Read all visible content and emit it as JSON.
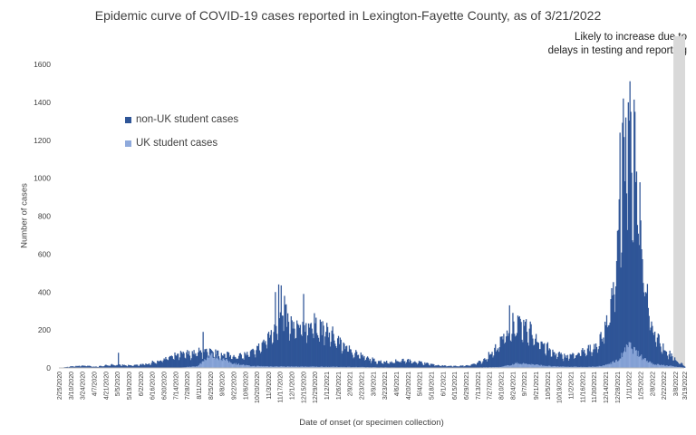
{
  "chart_data": {
    "type": "bar",
    "stacked": true,
    "title": "Epidemic curve of COVID-19 cases reported in Lexington-Fayette County, as of 3/21/2022",
    "xlabel": "Date of onset (or specimen collection)",
    "ylabel": "Number of cases",
    "ylim": [
      0,
      1600
    ],
    "yticks": [
      0,
      200,
      400,
      600,
      800,
      1000,
      1200,
      1400,
      1600
    ],
    "grid": false,
    "legend_position": "top-left",
    "annotation": "Likely to increase due to delays in testing and reporting",
    "x_start": "2020-02-25",
    "x_end": "2022-03-19",
    "x_tick_labels": [
      "2/25/2020",
      "3/10/2020",
      "3/24/2020",
      "4/7/2020",
      "4/21/2020",
      "5/5/2020",
      "5/19/2020",
      "6/2/2020",
      "6/16/2020",
      "6/30/2020",
      "7/14/2020",
      "7/28/2020",
      "8/11/2020",
      "8/25/2020",
      "9/8/2020",
      "9/22/2020",
      "10/6/2020",
      "10/20/2020",
      "11/3/2020",
      "11/17/2020",
      "12/1/2020",
      "12/15/2020",
      "12/29/2020",
      "1/12/2021",
      "1/26/2021",
      "2/9/2021",
      "2/23/2021",
      "3/9/2021",
      "3/23/2021",
      "4/6/2021",
      "4/20/2021",
      "5/4/2021",
      "5/18/2021",
      "6/1/2021",
      "6/15/2021",
      "6/29/2021",
      "7/13/2021",
      "7/27/2021",
      "8/10/2021",
      "8/24/2021",
      "9/7/2021",
      "9/21/2021",
      "10/5/2021",
      "10/19/2021",
      "11/2/2021",
      "11/16/2021",
      "11/30/2021",
      "12/14/2021",
      "12/28/2021",
      "1/11/2022",
      "1/25/2022",
      "2/8/2022",
      "2/22/2022",
      "3/8/2022",
      "3/19/2022"
    ],
    "series": [
      {
        "name": "non-UK student cases",
        "color": "#2f5597",
        "points": [
          [
            "2020-02-25",
            0
          ],
          [
            "2020-03-12",
            8
          ],
          [
            "2020-03-25",
            12
          ],
          [
            "2020-04-10",
            6
          ],
          [
            "2020-04-28",
            18
          ],
          [
            "2020-05-20",
            12
          ],
          [
            "2020-06-08",
            20
          ],
          [
            "2020-06-22",
            35
          ],
          [
            "2020-07-06",
            55
          ],
          [
            "2020-07-20",
            70
          ],
          [
            "2020-08-03",
            75
          ],
          [
            "2020-08-17",
            85
          ],
          [
            "2020-08-31",
            75
          ],
          [
            "2020-09-14",
            70
          ],
          [
            "2020-09-28",
            60
          ],
          [
            "2020-10-12",
            75
          ],
          [
            "2020-10-26",
            120
          ],
          [
            "2020-11-09",
            200
          ],
          [
            "2020-11-20",
            270
          ],
          [
            "2020-11-30",
            220
          ],
          [
            "2020-12-07",
            200
          ],
          [
            "2020-12-21",
            230
          ],
          [
            "2021-01-04",
            210
          ],
          [
            "2021-01-18",
            170
          ],
          [
            "2021-02-01",
            120
          ],
          [
            "2021-02-15",
            80
          ],
          [
            "2021-03-01",
            50
          ],
          [
            "2021-03-15",
            35
          ],
          [
            "2021-03-29",
            30
          ],
          [
            "2021-04-12",
            40
          ],
          [
            "2021-04-26",
            35
          ],
          [
            "2021-05-10",
            25
          ],
          [
            "2021-05-24",
            15
          ],
          [
            "2021-06-07",
            10
          ],
          [
            "2021-06-21",
            10
          ],
          [
            "2021-07-05",
            15
          ],
          [
            "2021-07-19",
            40
          ],
          [
            "2021-08-02",
            90
          ],
          [
            "2021-08-16",
            180
          ],
          [
            "2021-08-30",
            220
          ],
          [
            "2021-09-13",
            200
          ],
          [
            "2021-09-27",
            130
          ],
          [
            "2021-10-11",
            80
          ],
          [
            "2021-10-25",
            60
          ],
          [
            "2021-11-08",
            70
          ],
          [
            "2021-11-22",
            90
          ],
          [
            "2021-12-06",
            130
          ],
          [
            "2021-12-20",
            300
          ],
          [
            "2021-12-29",
            700
          ],
          [
            "2022-01-05",
            1100
          ],
          [
            "2022-01-11",
            1250
          ],
          [
            "2022-01-18",
            1050
          ],
          [
            "2022-01-25",
            700
          ],
          [
            "2022-02-01",
            400
          ],
          [
            "2022-02-08",
            220
          ],
          [
            "2022-02-22",
            100
          ],
          [
            "2022-03-08",
            40
          ],
          [
            "2022-03-19",
            10
          ]
        ]
      },
      {
        "name": "UK student cases",
        "color": "#8faadc",
        "points": [
          [
            "2020-02-25",
            0
          ],
          [
            "2020-07-20",
            2
          ],
          [
            "2020-08-10",
            10
          ],
          [
            "2020-08-24",
            70
          ],
          [
            "2020-09-07",
            50
          ],
          [
            "2020-09-21",
            25
          ],
          [
            "2020-10-12",
            10
          ],
          [
            "2020-11-09",
            8
          ],
          [
            "2021-01-25",
            6
          ],
          [
            "2021-02-15",
            5
          ],
          [
            "2021-03-15",
            3
          ],
          [
            "2021-05-01",
            2
          ],
          [
            "2021-06-15",
            0
          ],
          [
            "2021-08-10",
            5
          ],
          [
            "2021-08-30",
            25
          ],
          [
            "2021-09-13",
            20
          ],
          [
            "2021-10-11",
            8
          ],
          [
            "2021-11-22",
            5
          ],
          [
            "2021-12-10",
            10
          ],
          [
            "2021-12-29",
            40
          ],
          [
            "2022-01-11",
            120
          ],
          [
            "2022-01-25",
            60
          ],
          [
            "2022-02-10",
            20
          ],
          [
            "2022-03-19",
            2
          ]
        ]
      }
    ]
  }
}
